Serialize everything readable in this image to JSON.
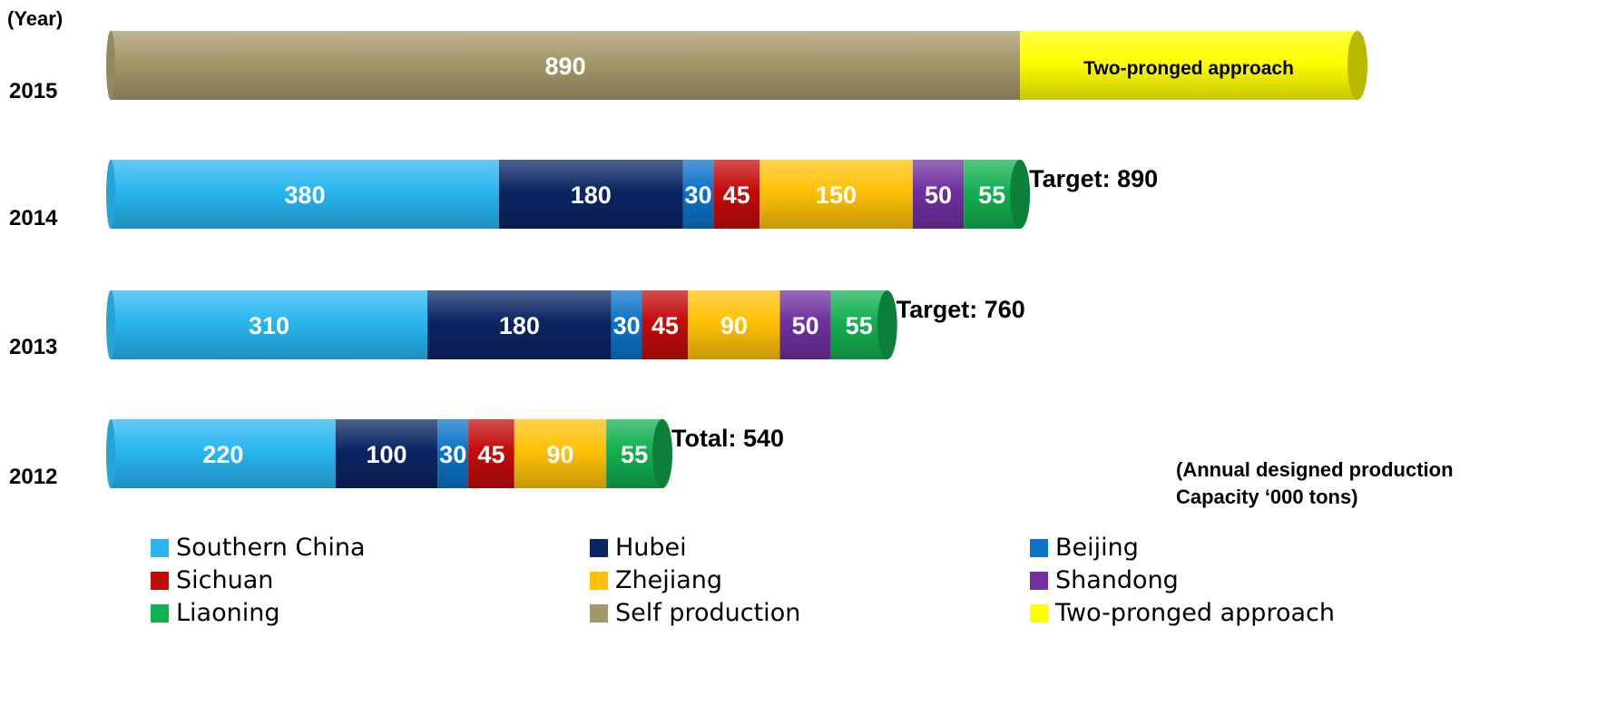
{
  "chart_data": {
    "type": "bar",
    "orientation": "horizontal",
    "stacked": true,
    "yaxis_title": "(Year)",
    "unit_note": [
      "(Annual designed production",
      "Capacity ‘000 tons)"
    ],
    "categories": [
      "2015",
      "2014",
      "2013",
      "2012"
    ],
    "series": [
      {
        "name": "Southern China",
        "color": "#29B6F0",
        "values": [
          0,
          380,
          310,
          220
        ]
      },
      {
        "name": "Hubei",
        "color": "#0B2563",
        "values": [
          0,
          180,
          180,
          100
        ]
      },
      {
        "name": "Beijing",
        "color": "#0C73C8",
        "values": [
          0,
          30,
          30,
          30
        ]
      },
      {
        "name": "Sichuan",
        "color": "#C30B0B",
        "values": [
          0,
          45,
          45,
          45
        ]
      },
      {
        "name": "Zhejiang",
        "color": "#FFC107",
        "values": [
          0,
          150,
          90,
          90
        ]
      },
      {
        "name": "Shandong",
        "color": "#7030A0",
        "values": [
          0,
          50,
          50,
          0
        ]
      },
      {
        "name": "Liaoning",
        "color": "#12B050",
        "values": [
          0,
          55,
          55,
          55
        ]
      },
      {
        "name": "Self production",
        "color": "#A3986A",
        "values": [
          890,
          0,
          0,
          0
        ]
      },
      {
        "name": "Two-pronged approach",
        "color": "#FFFF00",
        "values": [
          null,
          0,
          0,
          0
        ],
        "segment_label": "Two-pronged approach"
      }
    ],
    "bar_totals": [
      {
        "year": "2014",
        "label": "Target: 890"
      },
      {
        "year": "2013",
        "label": "Target: 760"
      },
      {
        "year": "2012",
        "label": "Total: 540"
      }
    ],
    "legend_position": "bottom"
  }
}
